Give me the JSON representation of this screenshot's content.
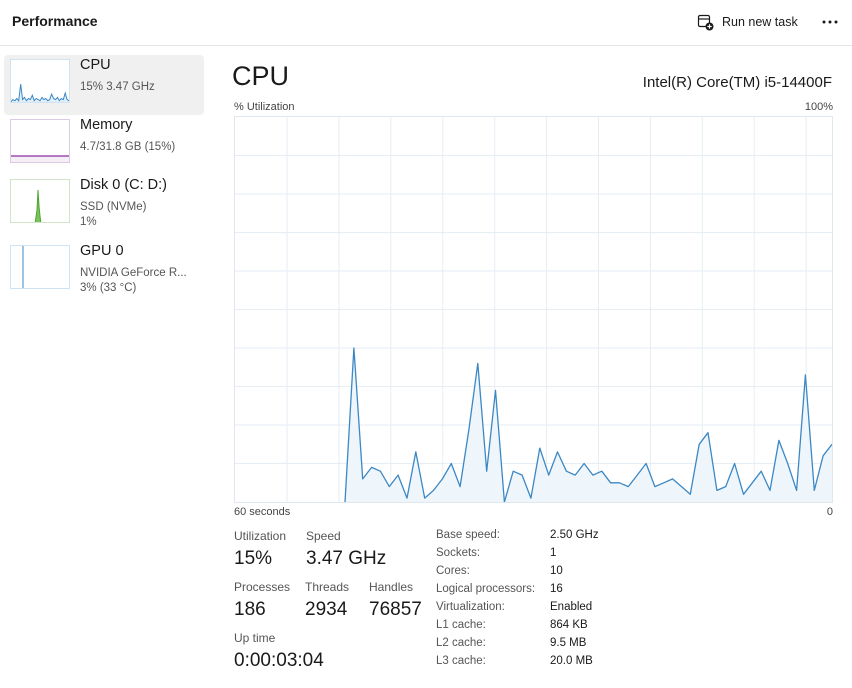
{
  "header": {
    "title": "Performance",
    "run_new_task": "Run new task"
  },
  "sidebar": {
    "items": [
      {
        "name": "CPU",
        "line1": "15% 3.47 GHz",
        "line2": ""
      },
      {
        "name": "Memory",
        "line1": "4.7/31.8 GB (15%)",
        "line2": ""
      },
      {
        "name": "Disk 0 (C: D:)",
        "line1": "SSD (NVMe)",
        "line2": "1%"
      },
      {
        "name": "GPU 0",
        "line1": "NVIDIA GeForce R...",
        "line2": "3%  (33 °C)"
      }
    ]
  },
  "main": {
    "title": "CPU",
    "model": "Intel(R) Core(TM) i5-14400F",
    "y_label": "% Utilization",
    "y_max_label": "100%",
    "x_label": "60 seconds",
    "x_end_label": "0"
  },
  "chart_data": {
    "type": "area",
    "ylim": [
      0,
      100
    ],
    "xlim": [
      0,
      60
    ],
    "grid": true,
    "series": [
      {
        "values": [
          0,
          40,
          6,
          9,
          8,
          4,
          7,
          1,
          13,
          1,
          3,
          6,
          10,
          4,
          19,
          36,
          8,
          29,
          0,
          8,
          7,
          1,
          14,
          7,
          13,
          8,
          7,
          10,
          7,
          8,
          5,
          5,
          4,
          7,
          10,
          4,
          5,
          6,
          4,
          2,
          15,
          18,
          3,
          4,
          10,
          2,
          5,
          8,
          3,
          16,
          10,
          3,
          33,
          3,
          12,
          15
        ]
      }
    ],
    "color": "#3c88c4",
    "fill": "#eef5fb"
  },
  "stats": {
    "utilization": {
      "label": "Utilization",
      "value": "15%"
    },
    "speed": {
      "label": "Speed",
      "value": "3.47 GHz"
    },
    "processes": {
      "label": "Processes",
      "value": "186"
    },
    "threads": {
      "label": "Threads",
      "value": "2934"
    },
    "handles": {
      "label": "Handles",
      "value": "76857"
    },
    "uptime": {
      "label": "Up time",
      "value": "0:00:03:04"
    }
  },
  "specs": [
    {
      "label": "Base speed:",
      "value": "2.50 GHz"
    },
    {
      "label": "Sockets:",
      "value": "1"
    },
    {
      "label": "Cores:",
      "value": "10"
    },
    {
      "label": "Logical processors:",
      "value": "16"
    },
    {
      "label": "Virtualization:",
      "value": "Enabled"
    },
    {
      "label": "L1 cache:",
      "value": "864 KB"
    },
    {
      "label": "L2 cache:",
      "value": "9.5 MB"
    },
    {
      "label": "L3 cache:",
      "value": "20.0 MB"
    }
  ],
  "colors": {
    "cpu": "#3c88c4",
    "memory": "#8b2fa0",
    "disk": "#4ca72f",
    "gpu": "#3c88c4"
  },
  "icons": {
    "run_new_task": "run-task-icon",
    "more": "more-icon"
  }
}
